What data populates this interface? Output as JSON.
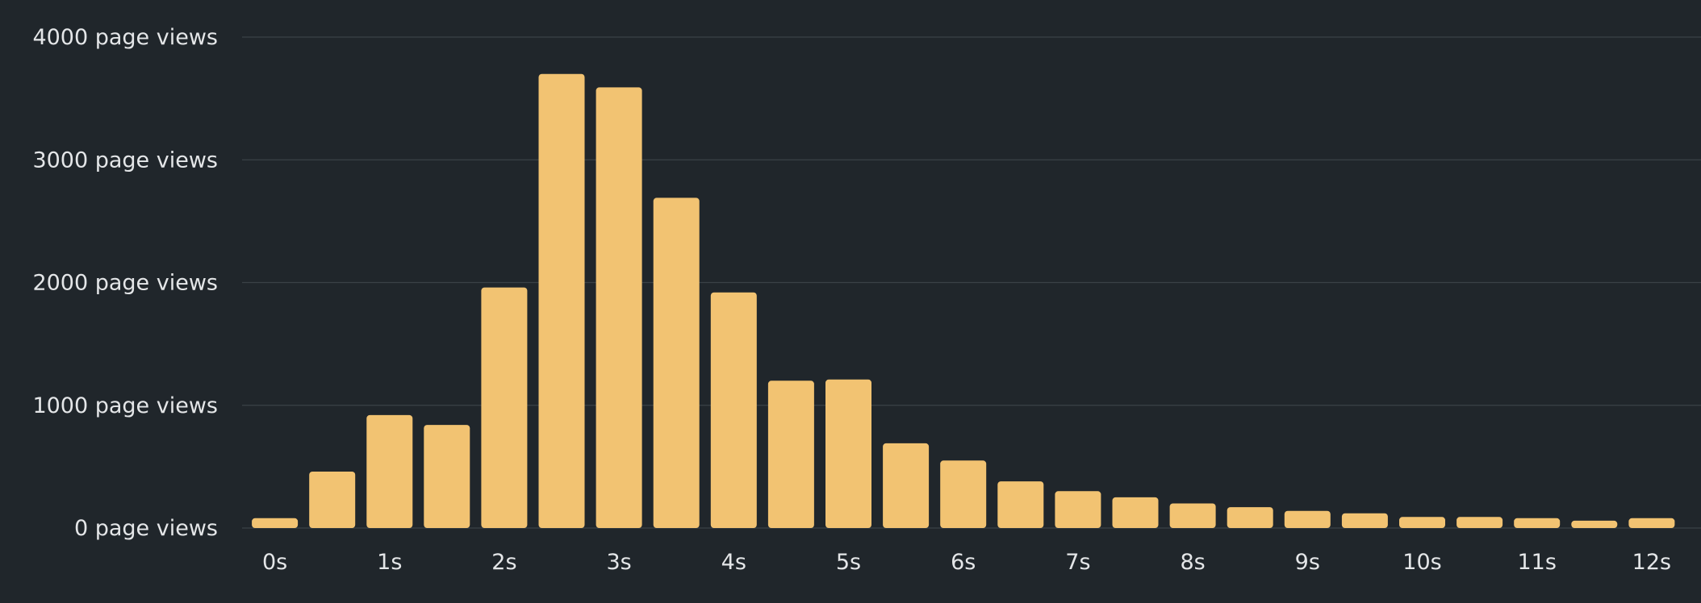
{
  "chart_data": {
    "type": "bar",
    "x_unit": "s",
    "bin_width": 0.5,
    "bins": [
      0,
      0.5,
      1,
      1.5,
      2,
      2.5,
      3,
      3.5,
      4,
      4.5,
      5,
      5.5,
      6,
      6.5,
      7,
      7.5,
      8,
      8.5,
      9,
      9.5,
      10,
      10.5,
      11,
      11.5,
      12
    ],
    "values": [
      80,
      460,
      920,
      840,
      1960,
      3700,
      3590,
      2690,
      1920,
      1200,
      1210,
      690,
      550,
      380,
      300,
      250,
      200,
      170,
      140,
      120,
      90,
      90,
      80,
      60,
      80
    ],
    "ylim": [
      0,
      4000
    ],
    "y_ticks": [
      {
        "value": 0,
        "label": "0 page views"
      },
      {
        "value": 1000,
        "label": "1000 page views"
      },
      {
        "value": 2000,
        "label": "2000 page views"
      },
      {
        "value": 3000,
        "label": "3000 page views"
      },
      {
        "value": 4000,
        "label": "4000 page views"
      }
    ],
    "x_ticks": [
      "0s",
      "1s",
      "2s",
      "3s",
      "4s",
      "5s",
      "6s",
      "7s",
      "8s",
      "9s",
      "10s",
      "11s",
      "12s"
    ],
    "grid": true,
    "colors": {
      "background": "#20262b",
      "bar": "#f2c372",
      "grid": "#3a4247",
      "text": "#e4e6e8"
    }
  }
}
